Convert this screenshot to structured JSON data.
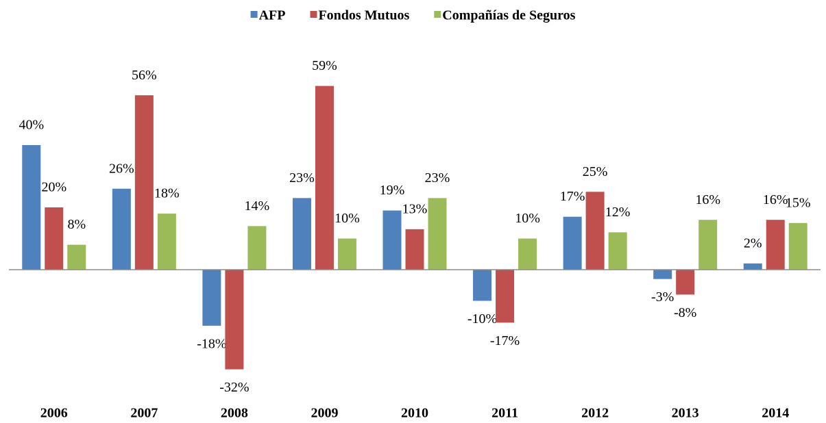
{
  "chart_data": {
    "type": "bar",
    "categories": [
      "2006",
      "2007",
      "2008",
      "2009",
      "2010",
      "2011",
      "2012",
      "2013",
      "2014"
    ],
    "series": [
      {
        "name": "AFP",
        "color": "#4f81bd",
        "values": [
          40,
          26,
          -18,
          23,
          19,
          -10,
          17,
          -3,
          2
        ],
        "value_labels": [
          "40%",
          "26%",
          "-18%",
          "23%",
          "19%",
          "-10%",
          "17%",
          "-3%",
          "2%"
        ]
      },
      {
        "name": "Fondos Mutuos",
        "color": "#c0504d",
        "values": [
          20,
          56,
          -32,
          59,
          13,
          -17,
          25,
          -8,
          16
        ],
        "value_labels": [
          "20%",
          "56%",
          "-32%",
          "59%",
          "13%",
          "-17%",
          "25%",
          "-8%",
          "16%"
        ]
      },
      {
        "name": "Compañías de Seguros",
        "color": "#9bbb59",
        "values": [
          8,
          18,
          14,
          10,
          23,
          10,
          12,
          16,
          15
        ],
        "value_labels": [
          "8%",
          "18%",
          "14%",
          "10%",
          "23%",
          "10%",
          "12%",
          "16%",
          "15%"
        ]
      }
    ],
    "ylim": [
      -40,
      70
    ],
    "legend": "top"
  }
}
